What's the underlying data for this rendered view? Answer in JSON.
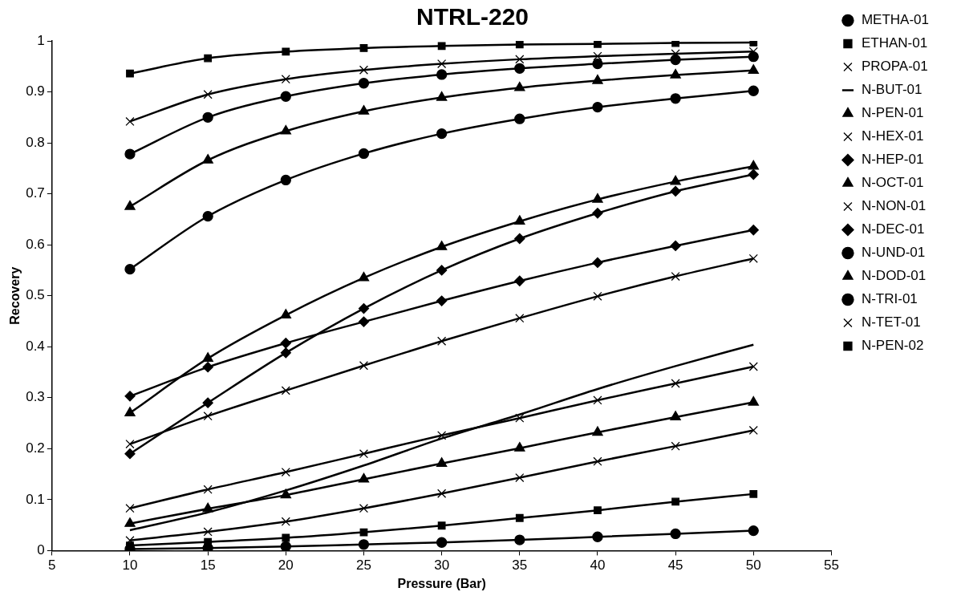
{
  "chart_data": {
    "type": "line",
    "title": "NTRL-220",
    "xlabel": "Pressure (Bar)",
    "ylabel": "Recovery",
    "x": [
      10,
      15,
      20,
      25,
      30,
      35,
      40,
      45,
      50
    ],
    "xlim": [
      5,
      55
    ],
    "xticks": [
      5,
      10,
      15,
      20,
      25,
      30,
      35,
      40,
      45,
      50,
      55
    ],
    "ylim": [
      0,
      1
    ],
    "yticks": [
      0,
      0.1,
      0.2,
      0.3,
      0.4,
      0.5,
      0.6,
      0.7,
      0.8,
      0.9,
      1
    ],
    "grid": false,
    "legend": "right",
    "series": [
      {
        "name": "METHA-01",
        "color": "#000000",
        "marker": "circle",
        "values": [
          0.003,
          0.005,
          0.008,
          0.012,
          0.016,
          0.021,
          0.027,
          0.033,
          0.039
        ]
      },
      {
        "name": "ETHAN-01",
        "color": "#000000",
        "marker": "square",
        "values": [
          0.01,
          0.017,
          0.025,
          0.036,
          0.049,
          0.064,
          0.079,
          0.096,
          0.111
        ]
      },
      {
        "name": "PROPA-01",
        "color": "#000000",
        "marker": "cross",
        "values": [
          0.02,
          0.037,
          0.057,
          0.083,
          0.112,
          0.143,
          0.175,
          0.205,
          0.236
        ]
      },
      {
        "name": "N-BUT-01",
        "color": "#000000",
        "marker": "none",
        "values": [
          0.04,
          0.075,
          0.118,
          0.167,
          0.22,
          0.267,
          0.317,
          0.362,
          0.404
        ]
      },
      {
        "name": "N-PEN-01",
        "color": "#000000",
        "marker": "triangle",
        "values": [
          0.053,
          0.082,
          0.109,
          0.14,
          0.171,
          0.201,
          0.232,
          0.262,
          0.291
        ]
      },
      {
        "name": "N-HEX-01",
        "color": "#000000",
        "marker": "cross",
        "values": [
          0.083,
          0.12,
          0.154,
          0.19,
          0.226,
          0.26,
          0.295,
          0.328,
          0.361
        ]
      },
      {
        "name": "N-HEP-01",
        "color": "#000000",
        "marker": "diamond",
        "values": [
          0.19,
          0.29,
          0.388,
          0.475,
          0.55,
          0.612,
          0.662,
          0.705,
          0.738
        ]
      },
      {
        "name": "N-OCT-01",
        "color": "#000000",
        "marker": "triangle",
        "values": [
          0.27,
          0.377,
          0.462,
          0.535,
          0.596,
          0.646,
          0.689,
          0.724,
          0.754
        ]
      },
      {
        "name": "N-NON-01",
        "color": "#000000",
        "marker": "cross",
        "values": [
          0.209,
          0.264,
          0.314,
          0.363,
          0.411,
          0.456,
          0.499,
          0.538,
          0.573
        ]
      },
      {
        "name": "N-DEC-01",
        "color": "#000000",
        "marker": "diamond",
        "values": [
          0.303,
          0.36,
          0.407,
          0.449,
          0.49,
          0.529,
          0.565,
          0.598,
          0.629
        ]
      },
      {
        "name": "N-UND-01",
        "color": "#000000",
        "marker": "circle",
        "values": [
          0.552,
          0.656,
          0.727,
          0.779,
          0.818,
          0.847,
          0.87,
          0.887,
          0.902
        ]
      },
      {
        "name": "N-DOD-01",
        "color": "#000000",
        "marker": "triangle",
        "values": [
          0.675,
          0.766,
          0.823,
          0.862,
          0.889,
          0.908,
          0.922,
          0.933,
          0.942
        ]
      },
      {
        "name": "N-TRI-01",
        "color": "#000000",
        "marker": "circle",
        "values": [
          0.778,
          0.85,
          0.891,
          0.917,
          0.934,
          0.946,
          0.955,
          0.963,
          0.969
        ]
      },
      {
        "name": "N-TET-01",
        "color": "#000000",
        "marker": "cross",
        "values": [
          0.842,
          0.895,
          0.925,
          0.943,
          0.955,
          0.964,
          0.97,
          0.975,
          0.979
        ]
      },
      {
        "name": "N-PEN-02",
        "color": "#000000",
        "marker": "square",
        "values": [
          0.936,
          0.966,
          0.979,
          0.986,
          0.99,
          0.993,
          0.994,
          0.996,
          0.997
        ]
      }
    ]
  }
}
